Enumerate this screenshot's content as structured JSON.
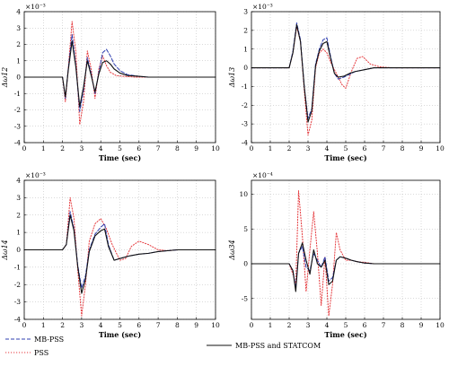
{
  "chart_data": [
    {
      "type": "line",
      "ylabel": "Δω12",
      "xlabel": "Time (sec)",
      "scale_note": "×10⁻³",
      "xlim": [
        0,
        10
      ],
      "ylim": [
        -4,
        4
      ],
      "xticks": [
        "0",
        "1",
        "2",
        "3",
        "4",
        "5",
        "6",
        "7",
        "8",
        "9",
        "10"
      ],
      "yticks": [
        "4",
        "3",
        "2",
        "1",
        "0",
        "-1",
        "-2",
        "-3",
        "-4"
      ],
      "grid": true,
      "series": [
        {
          "name": "PSS",
          "color": "#e5393d",
          "dash": "dotted",
          "x": [
            0,
            2,
            2.15,
            2.3,
            2.5,
            2.7,
            2.9,
            3.1,
            3.3,
            3.5,
            3.7,
            3.9,
            4.1,
            4.3,
            4.5,
            4.8,
            5.2,
            5.8,
            6.5,
            10
          ],
          "y": [
            0,
            0,
            -1.5,
            0.5,
            3.4,
            1.5,
            -2.9,
            -1.5,
            1.6,
            0.5,
            -1.3,
            0.5,
            1.3,
            0.7,
            0.3,
            0.1,
            0.05,
            0,
            0,
            0
          ]
        },
        {
          "name": "MB-PSS",
          "color": "#2f3fb0",
          "dash": "dashed",
          "x": [
            0,
            2,
            2.15,
            2.3,
            2.5,
            2.7,
            2.9,
            3.1,
            3.3,
            3.5,
            3.7,
            3.9,
            4.1,
            4.3,
            4.5,
            4.7,
            5.0,
            5.4,
            6.0,
            6.5,
            10
          ],
          "y": [
            0,
            0,
            -1.3,
            0.5,
            2.6,
            0.7,
            -2.1,
            -0.8,
            1.2,
            0.2,
            -1.0,
            0.3,
            1.5,
            1.7,
            1.3,
            0.8,
            0.4,
            0.15,
            0.05,
            0,
            0
          ]
        },
        {
          "name": "MB-PSS and STATCOM",
          "color": "#111111",
          "dash": "solid",
          "x": [
            0,
            2,
            2.15,
            2.3,
            2.5,
            2.7,
            2.9,
            3.1,
            3.3,
            3.5,
            3.7,
            3.9,
            4.1,
            4.3,
            4.5,
            4.7,
            5.0,
            5.4,
            6.0,
            6.5,
            10
          ],
          "y": [
            0,
            0,
            -1.2,
            0.4,
            2.2,
            0.6,
            -1.8,
            -0.6,
            1.0,
            0.1,
            -0.9,
            0.2,
            0.9,
            1.0,
            0.8,
            0.5,
            0.25,
            0.1,
            0.05,
            0,
            0
          ]
        }
      ]
    },
    {
      "type": "line",
      "ylabel": "Δω13",
      "xlabel": "Time (sec)",
      "scale_note": "×10⁻³",
      "xlim": [
        0,
        10
      ],
      "ylim": [
        -4,
        3
      ],
      "xticks": [
        "0",
        "1",
        "2",
        "3",
        "4",
        "5",
        "6",
        "7",
        "8",
        "9",
        "10"
      ],
      "yticks": [
        "3",
        "2",
        "1",
        "0",
        "-1",
        "-2",
        "-3",
        "-4"
      ],
      "grid": true,
      "series": [
        {
          "name": "PSS",
          "color": "#e5393d",
          "dash": "dotted",
          "x": [
            0,
            2,
            2.2,
            2.4,
            2.6,
            2.8,
            3.0,
            3.2,
            3.4,
            3.6,
            3.8,
            4.0,
            4.2,
            4.5,
            4.8,
            5.0,
            5.3,
            5.6,
            5.9,
            6.3,
            6.8,
            7.5,
            10
          ],
          "y": [
            0,
            0,
            0.8,
            2.2,
            1.4,
            -1.2,
            -3.6,
            -2.8,
            0,
            0.8,
            1.0,
            0.8,
            0.3,
            -0.3,
            -0.9,
            -1.1,
            -0.2,
            0.5,
            0.6,
            0.2,
            0.05,
            0,
            0
          ]
        },
        {
          "name": "MB-PSS",
          "color": "#2f3fb0",
          "dash": "dashed",
          "x": [
            0,
            2,
            2.2,
            2.4,
            2.6,
            2.8,
            3.0,
            3.2,
            3.4,
            3.6,
            3.8,
            4.0,
            4.2,
            4.4,
            4.6,
            4.9,
            5.2,
            5.5,
            6.0,
            6.5,
            10
          ],
          "y": [
            0,
            0,
            0.9,
            2.4,
            1.5,
            -1.0,
            -2.7,
            -2.2,
            0.2,
            1.0,
            1.5,
            1.6,
            0.6,
            -0.3,
            -0.6,
            -0.5,
            -0.35,
            -0.2,
            -0.1,
            0,
            0
          ]
        },
        {
          "name": "MB-PSS and STATCOM",
          "color": "#111111",
          "dash": "solid",
          "x": [
            0,
            2,
            2.2,
            2.4,
            2.6,
            2.8,
            3.0,
            3.2,
            3.4,
            3.6,
            3.8,
            4.0,
            4.2,
            4.4,
            4.6,
            4.9,
            5.2,
            5.5,
            6.0,
            6.5,
            10
          ],
          "y": [
            0,
            0,
            0.8,
            2.3,
            1.4,
            -1.0,
            -2.9,
            -2.3,
            0.1,
            0.9,
            1.3,
            1.4,
            0.5,
            -0.3,
            -0.5,
            -0.45,
            -0.3,
            -0.2,
            -0.1,
            0,
            0
          ]
        }
      ]
    },
    {
      "type": "line",
      "ylabel": "Δω14",
      "xlabel": "Time (sec)",
      "scale_note": "×10⁻³",
      "xlim": [
        0,
        10
      ],
      "ylim": [
        -4,
        4
      ],
      "xticks": [
        "0",
        "1",
        "2",
        "3",
        "4",
        "5",
        "6",
        "7",
        "8",
        "9",
        "10"
      ],
      "yticks": [
        "4",
        "3",
        "2",
        "1",
        "0",
        "-1",
        "-2",
        "-3",
        "-4"
      ],
      "grid": true,
      "series": [
        {
          "name": "PSS",
          "color": "#e5393d",
          "dash": "dotted",
          "x": [
            0,
            2,
            2.2,
            2.4,
            2.6,
            2.8,
            3.0,
            3.2,
            3.4,
            3.7,
            4.0,
            4.3,
            4.6,
            5.0,
            5.3,
            5.6,
            6.0,
            6.5,
            7.0,
            7.5,
            8.0,
            10
          ],
          "y": [
            0,
            0,
            0.3,
            3.0,
            1.8,
            -1.2,
            -3.8,
            -2.0,
            0.5,
            1.5,
            1.8,
            1.2,
            0.3,
            -0.6,
            -0.5,
            0.2,
            0.5,
            0.3,
            0,
            -0.05,
            0,
            0
          ]
        },
        {
          "name": "MB-PSS",
          "color": "#2f3fb0",
          "dash": "dashed",
          "x": [
            0,
            2,
            2.2,
            2.4,
            2.6,
            2.8,
            3.0,
            3.2,
            3.4,
            3.7,
            4.0,
            4.2,
            4.4,
            4.7,
            5.0,
            5.5,
            6.0,
            6.5,
            7.0,
            8.0,
            9.0,
            10
          ],
          "y": [
            0,
            0,
            0.3,
            2.2,
            1.2,
            -0.9,
            -2.2,
            -1.5,
            0,
            0.9,
            1.3,
            1.5,
            0.3,
            -0.6,
            -0.5,
            -0.35,
            -0.25,
            -0.2,
            -0.1,
            0,
            0,
            0
          ]
        },
        {
          "name": "MB-PSS and STATCOM",
          "color": "#111111",
          "dash": "solid",
          "x": [
            0,
            2,
            2.2,
            2.4,
            2.6,
            2.8,
            3.0,
            3.2,
            3.4,
            3.7,
            4.0,
            4.2,
            4.4,
            4.7,
            5.0,
            5.5,
            6.0,
            6.5,
            7.0,
            8.0,
            9.0,
            10
          ],
          "y": [
            0,
            0,
            0.3,
            2.0,
            1.1,
            -1.0,
            -2.5,
            -1.7,
            -0.1,
            0.8,
            1.1,
            1.2,
            0.2,
            -0.6,
            -0.5,
            -0.35,
            -0.25,
            -0.2,
            -0.1,
            0,
            0,
            0
          ]
        }
      ]
    },
    {
      "type": "line",
      "ylabel": "Δω34",
      "xlabel": "Time (sec)",
      "scale_note": "×10⁻⁴",
      "xlim": [
        0,
        10
      ],
      "ylim": [
        -8,
        12
      ],
      "xticks": [
        "0",
        "1",
        "2",
        "3",
        "4",
        "5",
        "6",
        "7",
        "8",
        "9",
        "10"
      ],
      "yticks": [
        "10",
        "5",
        "0",
        "-5"
      ],
      "grid": true,
      "series": [
        {
          "name": "PSS",
          "color": "#e5393d",
          "dash": "dotted",
          "x": [
            0,
            2,
            2.2,
            2.35,
            2.5,
            2.7,
            2.9,
            3.1,
            3.3,
            3.5,
            3.7,
            3.9,
            4.1,
            4.3,
            4.5,
            4.7,
            5.0,
            5.3,
            5.6,
            6.0,
            6.5,
            7.0,
            10
          ],
          "y": [
            0,
            0,
            -1.5,
            -3,
            10.5,
            4,
            -4,
            2,
            7.5,
            1.5,
            -6,
            1,
            -7.5,
            -3,
            4.5,
            2,
            0.5,
            0.5,
            0.3,
            0.2,
            0,
            0,
            0
          ]
        },
        {
          "name": "MB-PSS",
          "color": "#2f3fb0",
          "dash": "dashed",
          "x": [
            0,
            2,
            2.2,
            2.35,
            2.5,
            2.7,
            2.9,
            3.1,
            3.3,
            3.5,
            3.7,
            3.9,
            4.1,
            4.3,
            4.5,
            4.7,
            5.0,
            5.3,
            5.6,
            6.0,
            6.5,
            7.0,
            10
          ],
          "y": [
            0,
            0,
            -1,
            -3.5,
            1.5,
            2.5,
            -0.5,
            -1,
            1.5,
            0.5,
            -0.5,
            1,
            -2.5,
            -2,
            0.5,
            1,
            0.8,
            0.5,
            0.3,
            0.1,
            0,
            0,
            0
          ]
        },
        {
          "name": "MB-PSS and STATCOM",
          "color": "#111111",
          "dash": "solid",
          "x": [
            0,
            2,
            2.2,
            2.35,
            2.5,
            2.7,
            2.9,
            3.1,
            3.3,
            3.5,
            3.7,
            3.9,
            4.1,
            4.3,
            4.5,
            4.7,
            5.0,
            5.3,
            5.6,
            6.0,
            6.5,
            7.0,
            10
          ],
          "y": [
            0,
            0,
            -1,
            -4,
            1.5,
            3,
            0.5,
            -1.5,
            2,
            0,
            -0.5,
            0.5,
            -3,
            -2.5,
            0.5,
            1,
            0.8,
            0.5,
            0.3,
            0.1,
            0,
            0,
            0
          ]
        }
      ]
    }
  ],
  "legend": [
    {
      "label": "MB-PSS",
      "color": "#2f3fb0",
      "dash": "dashed"
    },
    {
      "label": "PSS",
      "color": "#e5393d",
      "dash": "dotted"
    },
    {
      "label": "MB-PSS and STATCOM",
      "color": "#111111",
      "dash": "solid"
    }
  ]
}
